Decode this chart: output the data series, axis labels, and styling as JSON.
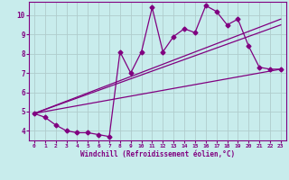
{
  "xlabel": "Windchill (Refroidissement éolien,°C)",
  "ylabel": "",
  "background_color": "#c8ecec",
  "line_color": "#800080",
  "grid_color": "#b0cccc",
  "xlim": [
    -0.5,
    23.5
  ],
  "ylim": [
    3.5,
    10.7
  ],
  "xticks": [
    0,
    1,
    2,
    3,
    4,
    5,
    6,
    7,
    8,
    9,
    10,
    11,
    12,
    13,
    14,
    15,
    16,
    17,
    18,
    19,
    20,
    21,
    22,
    23
  ],
  "yticks": [
    4,
    5,
    6,
    7,
    8,
    9,
    10
  ],
  "series1_x": [
    0,
    1,
    2,
    3,
    4,
    5,
    6,
    7,
    8,
    9,
    10,
    11,
    12,
    13,
    14,
    15,
    16,
    17,
    18,
    19,
    20,
    21,
    22,
    23
  ],
  "series1_y": [
    4.9,
    4.7,
    4.3,
    4.0,
    3.9,
    3.9,
    3.8,
    3.7,
    8.1,
    7.0,
    8.1,
    10.4,
    8.1,
    8.9,
    9.3,
    9.1,
    10.5,
    10.2,
    9.5,
    9.8,
    8.4,
    7.3,
    7.2,
    7.2
  ],
  "series2_x": [
    0,
    23
  ],
  "series2_y": [
    4.9,
    7.2
  ],
  "series3_x": [
    0,
    23
  ],
  "series3_y": [
    4.9,
    9.5
  ],
  "series4_x": [
    0,
    23
  ],
  "series4_y": [
    4.9,
    9.8
  ]
}
